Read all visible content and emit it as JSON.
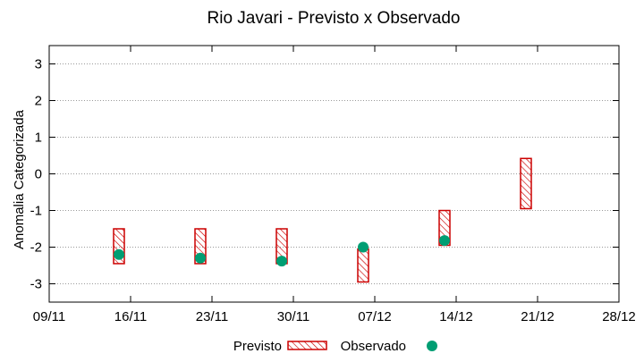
{
  "chart_data": {
    "type": "floating-bar-with-scatter",
    "title": "Rio Javari - Previsto x Observado",
    "xlabel": "",
    "ylabel": "Anomalia Categorizada",
    "x_ticks": [
      "09/11",
      "16/11",
      "23/11",
      "30/11",
      "07/12",
      "14/12",
      "21/12",
      "28/12"
    ],
    "xlim": [
      "09/11",
      "28/12"
    ],
    "ylim": [
      -3.5,
      3.5
    ],
    "y_ticks": [
      3,
      2,
      1,
      0,
      -1,
      -2,
      -3
    ],
    "grid": "horizontal-dotted",
    "legend_position": "bottom-center",
    "series": [
      {
        "name": "Previsto",
        "style": "hatched-box",
        "color": "#cc0000",
        "points": [
          {
            "x": "15/11",
            "low": -2.45,
            "high": -1.5
          },
          {
            "x": "22/11",
            "low": -2.45,
            "high": -1.5
          },
          {
            "x": "29/11",
            "low": -2.45,
            "high": -1.5
          },
          {
            "x": "06/12",
            "low": -2.95,
            "high": -2.05
          },
          {
            "x": "13/12",
            "low": -1.95,
            "high": -1.0
          },
          {
            "x": "20/12",
            "low": -0.95,
            "high": 0.42
          }
        ]
      },
      {
        "name": "Observado",
        "style": "dot",
        "color": "#009e73",
        "points": [
          {
            "x": "15/11",
            "y": -2.2
          },
          {
            "x": "22/11",
            "y": -2.3
          },
          {
            "x": "29/11",
            "y": -2.38
          },
          {
            "x": "06/12",
            "y": -2.0
          },
          {
            "x": "13/12",
            "y": -1.82
          }
        ]
      }
    ]
  }
}
